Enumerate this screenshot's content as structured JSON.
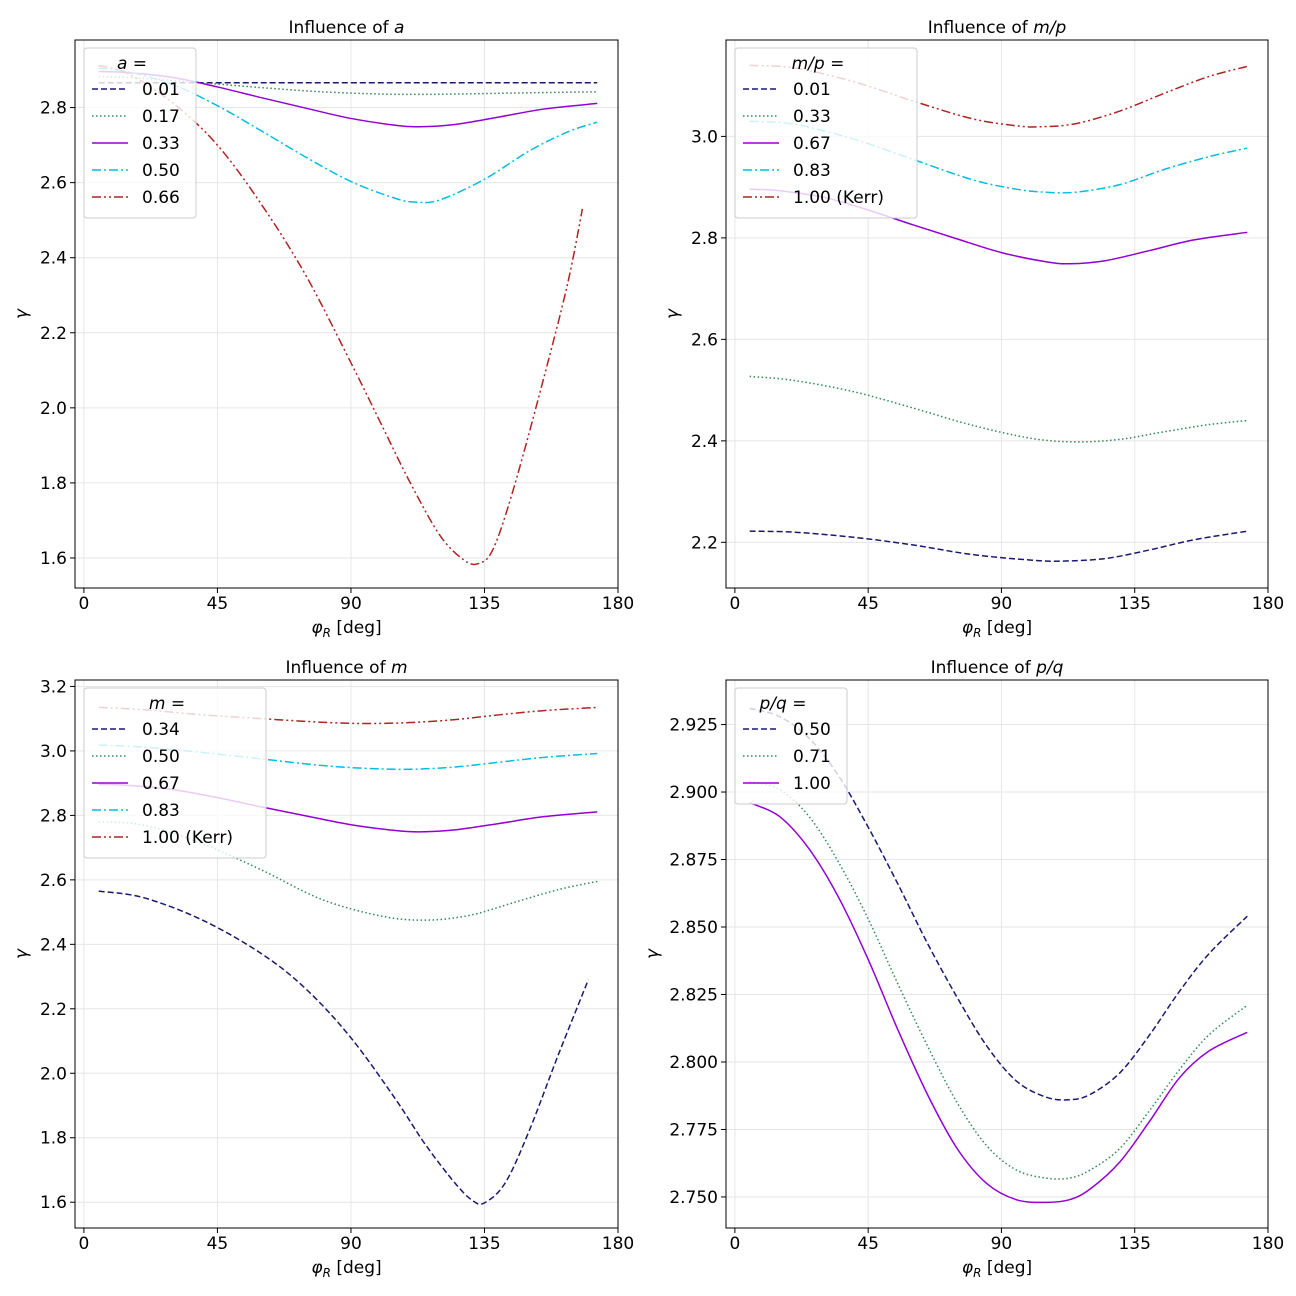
{
  "chart_data": [
    {
      "type": "line",
      "title_prefix": "Influence of ",
      "title_var": "a",
      "xlabel_var": "φ",
      "xlabel_sub": "R",
      "xlabel_unit": " [deg]",
      "ylabel": "γ",
      "xlim": [
        -3,
        180
      ],
      "ylim": [
        1.52,
        2.98
      ],
      "xticks": [
        0,
        45,
        90,
        135,
        180
      ],
      "yticks": [
        1.6,
        1.8,
        2.0,
        2.2,
        2.4,
        2.6,
        2.8
      ],
      "ytick_labels": [
        "1.6",
        "1.8",
        "2.0",
        "2.2",
        "2.4",
        "2.6",
        "2.8"
      ],
      "legend_title": "a =",
      "legend_title_var": "a",
      "legend_title_eq": "=",
      "series": [
        {
          "name": "0.01",
          "color": "#191970",
          "dash": "dashed",
          "x": [
            5,
            30,
            60,
            90,
            110,
            130,
            150,
            173
          ],
          "y": [
            2.866,
            2.866,
            2.866,
            2.866,
            2.866,
            2.866,
            2.866,
            2.866
          ]
        },
        {
          "name": "0.17",
          "color": "#2e8b57",
          "dash": "dotted",
          "x": [
            5,
            20,
            40,
            60,
            80,
            100,
            113,
            125,
            140,
            155,
            173
          ],
          "y": [
            2.883,
            2.878,
            2.866,
            2.853,
            2.842,
            2.836,
            2.835,
            2.836,
            2.838,
            2.84,
            2.842
          ]
        },
        {
          "name": "0.33",
          "color": "#9400d3",
          "dash": "solid",
          "x": [
            5,
            15,
            30,
            45,
            60,
            75,
            90,
            105,
            113,
            125,
            140,
            155,
            173
          ],
          "y": [
            2.896,
            2.893,
            2.88,
            2.855,
            2.826,
            2.798,
            2.771,
            2.753,
            2.749,
            2.755,
            2.775,
            2.796,
            2.811
          ]
        },
        {
          "name": "0.50",
          "color": "#00bfdf",
          "dash": "dashdot",
          "x": [
            5,
            15,
            30,
            45,
            60,
            75,
            90,
            105,
            112,
            120,
            135,
            150,
            163,
            173
          ],
          "y": [
            2.905,
            2.895,
            2.861,
            2.805,
            2.737,
            2.667,
            2.603,
            2.558,
            2.548,
            2.554,
            2.609,
            2.684,
            2.735,
            2.761
          ]
        },
        {
          "name": "0.66",
          "color": "#b22222",
          "dash": "dashdotdot",
          "x": [
            5,
            15,
            30,
            45,
            60,
            75,
            90,
            100,
            110,
            120,
            128,
            133,
            138,
            145,
            155,
            163,
            168
          ],
          "y": [
            2.912,
            2.89,
            2.812,
            2.7,
            2.54,
            2.35,
            2.12,
            1.96,
            1.8,
            1.66,
            1.595,
            1.585,
            1.625,
            1.79,
            2.08,
            2.33,
            2.53
          ]
        }
      ]
    },
    {
      "type": "line",
      "title_prefix": "Influence of ",
      "title_var": "m/p",
      "xlabel_var": "φ",
      "xlabel_sub": "R",
      "xlabel_unit": " [deg]",
      "ylabel": "γ",
      "xlim": [
        -3,
        180
      ],
      "ylim": [
        2.11,
        3.19
      ],
      "xticks": [
        0,
        45,
        90,
        135,
        180
      ],
      "yticks": [
        2.2,
        2.4,
        2.6,
        2.8,
        3.0
      ],
      "ytick_labels": [
        "2.2",
        "2.4",
        "2.6",
        "2.8",
        "3.0"
      ],
      "legend_title": "m/p =",
      "legend_title_var": "m/p",
      "legend_title_eq": "=",
      "series": [
        {
          "name": "0.01",
          "color": "#191970",
          "dash": "dashed",
          "x": [
            5,
            20,
            40,
            60,
            80,
            100,
            110,
            125,
            140,
            155,
            173
          ],
          "y": [
            2.222,
            2.22,
            2.21,
            2.195,
            2.176,
            2.165,
            2.163,
            2.168,
            2.185,
            2.205,
            2.222
          ]
        },
        {
          "name": "0.33",
          "color": "#2e8b57",
          "dash": "dotted",
          "x": [
            5,
            20,
            40,
            60,
            80,
            100,
            115,
            130,
            145,
            160,
            173
          ],
          "y": [
            2.527,
            2.519,
            2.497,
            2.465,
            2.431,
            2.405,
            2.398,
            2.403,
            2.418,
            2.432,
            2.44
          ]
        },
        {
          "name": "0.67",
          "color": "#9400d3",
          "dash": "solid",
          "x": [
            5,
            15,
            30,
            45,
            60,
            75,
            90,
            105,
            113,
            125,
            140,
            155,
            173
          ],
          "y": [
            2.896,
            2.893,
            2.88,
            2.855,
            2.826,
            2.798,
            2.771,
            2.753,
            2.749,
            2.755,
            2.775,
            2.796,
            2.811
          ]
        },
        {
          "name": "0.83",
          "color": "#00bfdf",
          "dash": "dashdot",
          "x": [
            5,
            20,
            40,
            60,
            80,
            95,
            105,
            115,
            130,
            145,
            160,
            173
          ],
          "y": [
            3.03,
            3.024,
            2.995,
            2.955,
            2.915,
            2.896,
            2.89,
            2.89,
            2.905,
            2.935,
            2.96,
            2.977
          ]
        },
        {
          "name": "1.00 (Kerr)",
          "color": "#b22222",
          "dash": "dashdotdot",
          "x": [
            5,
            20,
            40,
            60,
            80,
            95,
            103,
            115,
            130,
            145,
            160,
            173
          ],
          "y": [
            3.14,
            3.135,
            3.108,
            3.07,
            3.035,
            3.021,
            3.019,
            3.025,
            3.05,
            3.085,
            3.118,
            3.138
          ]
        }
      ]
    },
    {
      "type": "line",
      "title_prefix": "Influence of ",
      "title_var": "m",
      "xlabel_var": "φ",
      "xlabel_sub": "R",
      "xlabel_unit": " [deg]",
      "ylabel": "γ",
      "xlim": [
        -3,
        180
      ],
      "ylim": [
        1.52,
        3.22
      ],
      "xticks": [
        0,
        45,
        90,
        135,
        180
      ],
      "yticks": [
        1.6,
        1.8,
        2.0,
        2.2,
        2.4,
        2.6,
        2.8,
        3.0,
        3.2
      ],
      "ytick_labels": [
        "1.6",
        "1.8",
        "2.0",
        "2.2",
        "2.4",
        "2.6",
        "2.8",
        "3.0",
        "3.2"
      ],
      "legend_title": "m =",
      "legend_title_var": "m",
      "legend_title_eq": "=",
      "series": [
        {
          "name": "0.34",
          "color": "#191970",
          "dash": "dashed",
          "x": [
            5,
            20,
            40,
            60,
            75,
            90,
            105,
            115,
            125,
            131,
            135,
            142,
            150,
            160,
            170
          ],
          "y": [
            2.565,
            2.545,
            2.475,
            2.37,
            2.26,
            2.11,
            1.92,
            1.78,
            1.66,
            1.605,
            1.598,
            1.66,
            1.82,
            2.06,
            2.29
          ]
        },
        {
          "name": "0.50",
          "color": "#2e8b57",
          "dash": "dotted",
          "x": [
            5,
            20,
            40,
            60,
            80,
            100,
            115,
            130,
            145,
            160,
            173
          ],
          "y": [
            2.78,
            2.77,
            2.712,
            2.63,
            2.54,
            2.488,
            2.475,
            2.49,
            2.53,
            2.57,
            2.595
          ]
        },
        {
          "name": "0.67",
          "color": "#9400d3",
          "dash": "solid",
          "x": [
            5,
            15,
            30,
            45,
            60,
            75,
            90,
            105,
            113,
            125,
            140,
            155,
            173
          ],
          "y": [
            2.896,
            2.893,
            2.88,
            2.855,
            2.826,
            2.798,
            2.771,
            2.753,
            2.749,
            2.755,
            2.775,
            2.796,
            2.811
          ]
        },
        {
          "name": "0.83",
          "color": "#00bfdf",
          "dash": "dashdot",
          "x": [
            5,
            20,
            40,
            60,
            80,
            95,
            110,
            125,
            140,
            155,
            173
          ],
          "y": [
            3.018,
            3.012,
            2.995,
            2.975,
            2.955,
            2.946,
            2.943,
            2.95,
            2.965,
            2.98,
            2.992
          ]
        },
        {
          "name": "1.00 (Kerr)",
          "color": "#b22222",
          "dash": "dashdotdot",
          "x": [
            5,
            20,
            40,
            60,
            80,
            95,
            110,
            125,
            140,
            155,
            173
          ],
          "y": [
            3.135,
            3.128,
            3.112,
            3.1,
            3.089,
            3.085,
            3.088,
            3.097,
            3.112,
            3.125,
            3.135
          ]
        }
      ]
    },
    {
      "type": "line",
      "title_prefix": "Influence of ",
      "title_var": "p/q",
      "xlabel_var": "φ",
      "xlabel_sub": "R",
      "xlabel_unit": " [deg]",
      "ylabel": "γ",
      "xlim": [
        -3,
        180
      ],
      "ylim": [
        2.7385,
        2.9415
      ],
      "xticks": [
        0,
        45,
        90,
        135,
        180
      ],
      "yticks": [
        2.75,
        2.775,
        2.8,
        2.825,
        2.85,
        2.875,
        2.9,
        2.925
      ],
      "ytick_labels": [
        "2.750",
        "2.775",
        "2.800",
        "2.825",
        "2.850",
        "2.875",
        "2.900",
        "2.925"
      ],
      "legend_title": "p/q =",
      "legend_title_var": "p/q",
      "legend_title_eq": "=",
      "series": [
        {
          "name": "0.50",
          "color": "#191970",
          "dash": "dashed",
          "x": [
            5,
            15,
            25,
            35,
            45,
            55,
            65,
            75,
            85,
            95,
            105,
            113,
            120,
            130,
            140,
            150,
            160,
            173
          ],
          "y": [
            2.931,
            2.928,
            2.92,
            2.906,
            2.887,
            2.866,
            2.844,
            2.824,
            2.806,
            2.793,
            2.787,
            2.786,
            2.788,
            2.796,
            2.81,
            2.826,
            2.84,
            2.854
          ]
        },
        {
          "name": "0.71",
          "color": "#2e8b57",
          "dash": "dotted",
          "x": [
            5,
            15,
            25,
            35,
            45,
            55,
            65,
            75,
            85,
            95,
            105,
            113,
            120,
            130,
            140,
            150,
            160,
            173
          ],
          "y": [
            2.904,
            2.901,
            2.891,
            2.874,
            2.853,
            2.829,
            2.806,
            2.785,
            2.769,
            2.76,
            2.757,
            2.757,
            2.76,
            2.768,
            2.782,
            2.797,
            2.81,
            2.821
          ]
        },
        {
          "name": "1.00",
          "color": "#9400d3",
          "dash": "solid",
          "x": [
            5,
            15,
            25,
            35,
            45,
            55,
            65,
            75,
            85,
            95,
            105,
            113,
            120,
            130,
            140,
            150,
            160,
            173
          ],
          "y": [
            2.896,
            2.891,
            2.879,
            2.861,
            2.838,
            2.812,
            2.788,
            2.768,
            2.755,
            2.749,
            2.748,
            2.749,
            2.753,
            2.763,
            2.778,
            2.794,
            2.804,
            2.811
          ]
        }
      ]
    }
  ]
}
